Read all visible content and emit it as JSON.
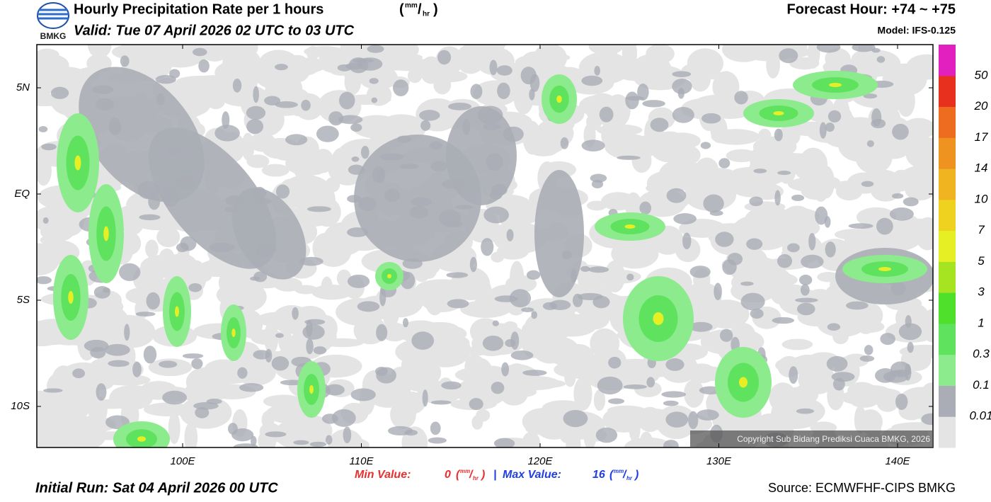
{
  "header": {
    "logo": "BMKG",
    "title": "Hourly Precipitation Rate per 1 hours",
    "title_unit": {
      "open": "(",
      "num": "mm",
      "slash": "/",
      "den": "hr",
      "close": ")"
    },
    "valid": "Valid: Tue 07 April 2026 02 UTC to 03 UTC",
    "forecast_hour": "Forecast Hour: +74 ~ +75",
    "model": "Model: IFS-0.125"
  },
  "map": {
    "lat_labels": [
      "5N",
      "EQ",
      "5S",
      "10S"
    ],
    "lon_labels": [
      "100E",
      "110E",
      "120E",
      "130E",
      "140E"
    ],
    "copyright": "Copyright Sub Bidang Prediksi Cuaca BMKG, 2026"
  },
  "colorbar": {
    "labels": [
      0.01,
      0.1,
      0.3,
      1,
      3,
      5,
      7,
      10,
      14,
      17,
      20,
      50
    ],
    "colors": [
      "#e4e4e4",
      "#aaadb5",
      "#8ceb8c",
      "#5fe35f",
      "#4ee02a",
      "#a6e421",
      "#e6ef24",
      "#efd21f",
      "#efb420",
      "#ef9320",
      "#ee6c20",
      "#e8301f",
      "#e21fbf"
    ]
  },
  "footer": {
    "min_label": "Min Value:",
    "min_value": "0",
    "max_label": "Max Value:",
    "max_value": "16",
    "unit": {
      "open": "(",
      "num": "mm",
      "slash": "/",
      "den": "hr",
      "close": ")"
    },
    "separator": "|",
    "initial_run": "Initial Run: Sat 04 April 2026 00 UTC",
    "source": "Source: ECMWFHF-CIPS BMKG"
  }
}
